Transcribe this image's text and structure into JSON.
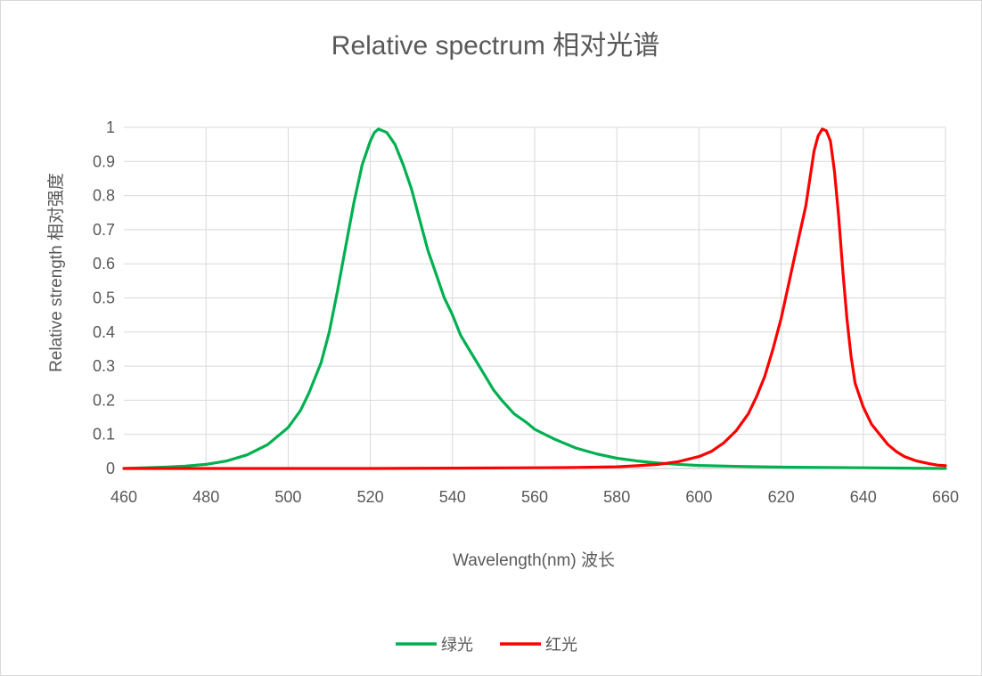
{
  "chart_data": {
    "type": "line",
    "title": "Relative spectrum 相对光谱",
    "xlabel": "Wavelength(nm) 波长",
    "ylabel": "Relative strength 相对强度",
    "xlim": [
      460,
      660
    ],
    "ylim": [
      0,
      1
    ],
    "x_ticks": [
      "460",
      "480",
      "500",
      "520",
      "540",
      "560",
      "580",
      "600",
      "620",
      "640",
      "660"
    ],
    "y_ticks": [
      "0",
      "0.1",
      "0.2",
      "0.3",
      "0.4",
      "0.5",
      "0.6",
      "0.7",
      "0.8",
      "0.9",
      "1"
    ],
    "grid": true,
    "legend_position": "bottom",
    "series": [
      {
        "name": "绿光",
        "color": "#00b050",
        "points": [
          [
            460,
            0.0
          ],
          [
            465,
            0.002
          ],
          [
            470,
            0.004
          ],
          [
            475,
            0.007
          ],
          [
            480,
            0.012
          ],
          [
            485,
            0.022
          ],
          [
            490,
            0.04
          ],
          [
            495,
            0.07
          ],
          [
            500,
            0.12
          ],
          [
            503,
            0.17
          ],
          [
            505,
            0.22
          ],
          [
            508,
            0.31
          ],
          [
            510,
            0.4
          ],
          [
            512,
            0.52
          ],
          [
            514,
            0.65
          ],
          [
            516,
            0.78
          ],
          [
            518,
            0.89
          ],
          [
            520,
            0.96
          ],
          [
            521,
            0.985
          ],
          [
            522,
            0.995
          ],
          [
            523,
            0.99
          ],
          [
            524,
            0.985
          ],
          [
            526,
            0.95
          ],
          [
            528,
            0.89
          ],
          [
            530,
            0.82
          ],
          [
            532,
            0.73
          ],
          [
            534,
            0.64
          ],
          [
            536,
            0.57
          ],
          [
            538,
            0.5
          ],
          [
            540,
            0.45
          ],
          [
            542,
            0.39
          ],
          [
            544,
            0.35
          ],
          [
            546,
            0.31
          ],
          [
            548,
            0.27
          ],
          [
            550,
            0.23
          ],
          [
            552,
            0.2
          ],
          [
            555,
            0.16
          ],
          [
            558,
            0.135
          ],
          [
            560,
            0.115
          ],
          [
            565,
            0.085
          ],
          [
            570,
            0.06
          ],
          [
            575,
            0.043
          ],
          [
            580,
            0.03
          ],
          [
            585,
            0.022
          ],
          [
            590,
            0.016
          ],
          [
            595,
            0.012
          ],
          [
            600,
            0.009
          ],
          [
            610,
            0.006
          ],
          [
            620,
            0.004
          ],
          [
            630,
            0.003
          ],
          [
            640,
            0.002
          ],
          [
            650,
            0.001
          ],
          [
            660,
            0.0
          ]
        ]
      },
      {
        "name": "红光",
        "color": "#ff0000",
        "points": [
          [
            460,
            0.0
          ],
          [
            480,
            0.0
          ],
          [
            500,
            0.0
          ],
          [
            520,
            0.0
          ],
          [
            540,
            0.001
          ],
          [
            560,
            0.002
          ],
          [
            570,
            0.003
          ],
          [
            580,
            0.005
          ],
          [
            585,
            0.008
          ],
          [
            590,
            0.012
          ],
          [
            595,
            0.02
          ],
          [
            600,
            0.035
          ],
          [
            603,
            0.05
          ],
          [
            606,
            0.075
          ],
          [
            609,
            0.11
          ],
          [
            612,
            0.16
          ],
          [
            614,
            0.21
          ],
          [
            616,
            0.27
          ],
          [
            618,
            0.35
          ],
          [
            620,
            0.44
          ],
          [
            622,
            0.55
          ],
          [
            624,
            0.66
          ],
          [
            626,
            0.77
          ],
          [
            627,
            0.85
          ],
          [
            628,
            0.93
          ],
          [
            629,
            0.975
          ],
          [
            630,
            0.995
          ],
          [
            631,
            0.99
          ],
          [
            632,
            0.96
          ],
          [
            633,
            0.87
          ],
          [
            634,
            0.74
          ],
          [
            635,
            0.58
          ],
          [
            636,
            0.44
          ],
          [
            637,
            0.33
          ],
          [
            638,
            0.25
          ],
          [
            640,
            0.18
          ],
          [
            642,
            0.13
          ],
          [
            644,
            0.1
          ],
          [
            646,
            0.07
          ],
          [
            648,
            0.05
          ],
          [
            650,
            0.035
          ],
          [
            653,
            0.022
          ],
          [
            656,
            0.014
          ],
          [
            658,
            0.01
          ],
          [
            660,
            0.008
          ]
        ]
      }
    ]
  }
}
